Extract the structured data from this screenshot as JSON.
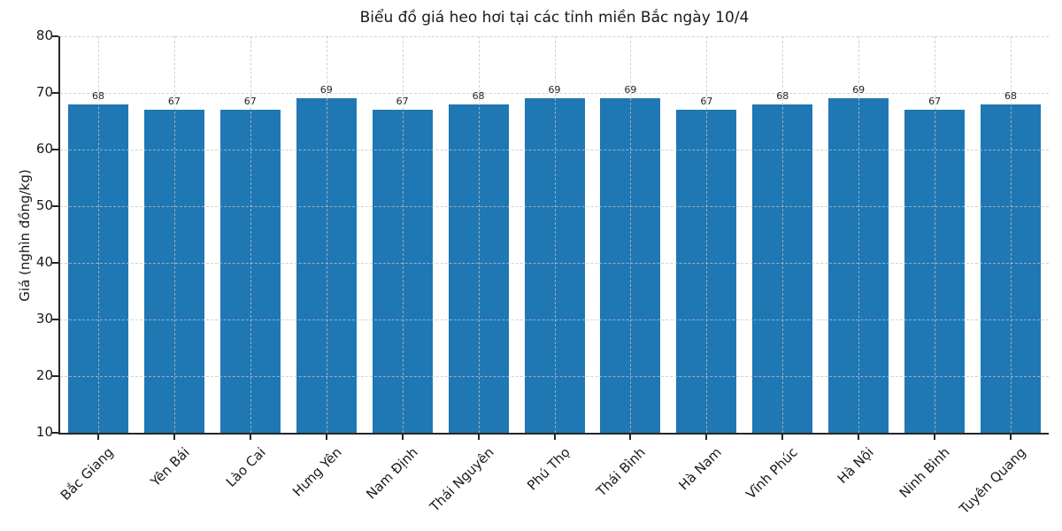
{
  "chart_data": {
    "type": "bar",
    "title": "Biểu đồ giá heo hơi tại các tỉnh miền Bắc ngày 10/4",
    "xlabel": "",
    "ylabel": "Giá (nghìn đồng/kg)",
    "categories": [
      "Bắc Giang",
      "Yên Bái",
      "Lào Cai",
      "Hưng Yên",
      "Nam Định",
      "Thái Nguyên",
      "Phú Thọ",
      "Thái Bình",
      "Hà Nam",
      "Vĩnh Phúc",
      "Hà Nội",
      "Ninh Bình",
      "Tuyên Quang"
    ],
    "values": [
      68,
      67,
      67,
      69,
      67,
      68,
      69,
      69,
      67,
      68,
      69,
      67,
      68
    ],
    "bar_value_labels": [
      "68",
      "67",
      "67",
      "69",
      "67",
      "68",
      "69",
      "69",
      "67",
      "68",
      "69",
      "67",
      "68"
    ],
    "ylim": [
      10,
      80
    ],
    "yticks": [
      10,
      20,
      30,
      40,
      50,
      60,
      70,
      80
    ],
    "grid": "dashed, horizontal and vertical, drawn over bars",
    "legend": "none",
    "colors": {
      "bar": "#1f77b4",
      "grid": "#c3c3c3",
      "axis": "#262626",
      "text": "#1a1a1a"
    }
  }
}
